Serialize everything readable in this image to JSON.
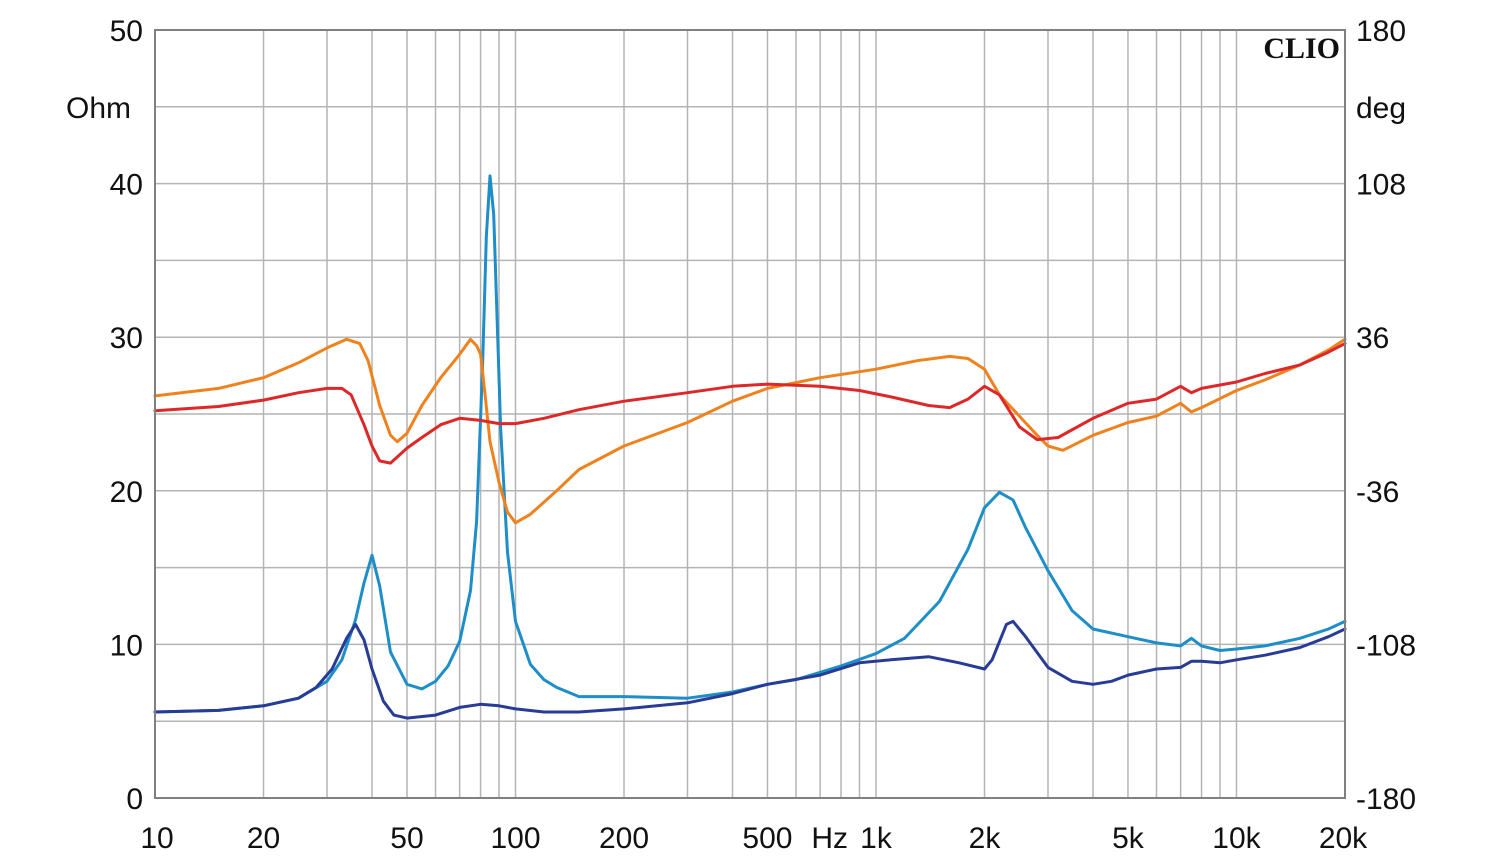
{
  "chart_data": {
    "type": "line",
    "x_scale": "log",
    "xlim": [
      10,
      20000
    ],
    "ylim_left": [
      0,
      50
    ],
    "ylim_right": [
      -180,
      180
    ],
    "grid": true,
    "left_unit": "Ohm",
    "right_unit": "deg",
    "watermark": "CLIO",
    "x_ticks": [
      {
        "v": 10,
        "label": "10"
      },
      {
        "v": 20,
        "label": "20"
      },
      {
        "v": 50,
        "label": "50"
      },
      {
        "v": 100,
        "label": "100"
      },
      {
        "v": 200,
        "label": "200"
      },
      {
        "v": 500,
        "label": "500"
      },
      {
        "v": 1000,
        "label": "1k"
      },
      {
        "v": 2000,
        "label": "2k"
      },
      {
        "v": 5000,
        "label": "5k"
      },
      {
        "v": 10000,
        "label": "10k"
      },
      {
        "v": 20000,
        "label": "20k"
      }
    ],
    "x_unit_label": "Hz",
    "y_ticks_left": [
      {
        "v": 0,
        "label": "0"
      },
      {
        "v": 10,
        "label": "10"
      },
      {
        "v": 20,
        "label": "20"
      },
      {
        "v": 30,
        "label": "30"
      },
      {
        "v": 40,
        "label": "40"
      },
      {
        "v": 50,
        "label": "50"
      }
    ],
    "y_ticks_right": [
      {
        "v": -180,
        "label": "-180"
      },
      {
        "v": -108,
        "label": "-108"
      },
      {
        "v": -36,
        "label": "-36"
      },
      {
        "v": 36,
        "label": "36"
      },
      {
        "v": 108,
        "label": "108"
      },
      {
        "v": 180,
        "label": "180"
      }
    ],
    "series": [
      {
        "id": "impedance-a",
        "axis": "left",
        "color": "#1e8ec8",
        "points": [
          [
            10,
            5.6
          ],
          [
            15,
            5.7
          ],
          [
            20,
            6
          ],
          [
            25,
            6.5
          ],
          [
            30,
            7.6
          ],
          [
            33,
            9
          ],
          [
            36,
            11.6
          ],
          [
            38,
            14
          ],
          [
            40,
            15.8
          ],
          [
            42,
            13.8
          ],
          [
            45,
            9.5
          ],
          [
            50,
            7.4
          ],
          [
            55,
            7.1
          ],
          [
            60,
            7.6
          ],
          [
            65,
            8.6
          ],
          [
            70,
            10.2
          ],
          [
            75,
            13.5
          ],
          [
            78,
            18
          ],
          [
            81,
            28
          ],
          [
            83,
            36.5
          ],
          [
            85,
            40.5
          ],
          [
            87,
            38
          ],
          [
            89,
            31
          ],
          [
            91,
            24
          ],
          [
            95,
            16
          ],
          [
            100,
            11.5
          ],
          [
            110,
            8.7
          ],
          [
            120,
            7.7
          ],
          [
            130,
            7.2
          ],
          [
            150,
            6.6
          ],
          [
            200,
            6.6
          ],
          [
            300,
            6.5
          ],
          [
            400,
            6.9
          ],
          [
            500,
            7.4
          ],
          [
            600,
            7.7
          ],
          [
            800,
            8.6
          ],
          [
            1000,
            9.4
          ],
          [
            1200,
            10.4
          ],
          [
            1500,
            12.8
          ],
          [
            1800,
            16.2
          ],
          [
            2000,
            18.9
          ],
          [
            2200,
            19.9
          ],
          [
            2400,
            19.4
          ],
          [
            2600,
            17.6
          ],
          [
            3000,
            14.8
          ],
          [
            3500,
            12.2
          ],
          [
            4000,
            11
          ],
          [
            5000,
            10.5
          ],
          [
            6000,
            10.1
          ],
          [
            7000,
            9.9
          ],
          [
            7500,
            10.4
          ],
          [
            8000,
            9.9
          ],
          [
            9000,
            9.6
          ],
          [
            10000,
            9.7
          ],
          [
            12000,
            9.9
          ],
          [
            15000,
            10.4
          ],
          [
            18000,
            11
          ],
          [
            20000,
            11.5
          ]
        ]
      },
      {
        "id": "impedance-b",
        "axis": "left",
        "color": "#283c96",
        "points": [
          [
            10,
            5.6
          ],
          [
            15,
            5.7
          ],
          [
            20,
            6
          ],
          [
            25,
            6.5
          ],
          [
            28,
            7.2
          ],
          [
            31,
            8.4
          ],
          [
            34,
            10.4
          ],
          [
            36,
            11.3
          ],
          [
            38,
            10.3
          ],
          [
            40,
            8.4
          ],
          [
            43,
            6.3
          ],
          [
            46,
            5.4
          ],
          [
            50,
            5.2
          ],
          [
            60,
            5.4
          ],
          [
            70,
            5.9
          ],
          [
            80,
            6.1
          ],
          [
            90,
            6
          ],
          [
            100,
            5.8
          ],
          [
            120,
            5.6
          ],
          [
            150,
            5.6
          ],
          [
            200,
            5.8
          ],
          [
            300,
            6.2
          ],
          [
            400,
            6.8
          ],
          [
            500,
            7.4
          ],
          [
            700,
            8
          ],
          [
            900,
            8.8
          ],
          [
            1100,
            9
          ],
          [
            1400,
            9.2
          ],
          [
            1700,
            8.8
          ],
          [
            2000,
            8.4
          ],
          [
            2100,
            9
          ],
          [
            2300,
            11.3
          ],
          [
            2400,
            11.5
          ],
          [
            2600,
            10.5
          ],
          [
            3000,
            8.5
          ],
          [
            3500,
            7.6
          ],
          [
            4000,
            7.4
          ],
          [
            4500,
            7.6
          ],
          [
            5000,
            8
          ],
          [
            6000,
            8.4
          ],
          [
            7000,
            8.5
          ],
          [
            7500,
            8.9
          ],
          [
            8000,
            8.9
          ],
          [
            9000,
            8.8
          ],
          [
            10000,
            9
          ],
          [
            12000,
            9.3
          ],
          [
            15000,
            9.8
          ],
          [
            18000,
            10.5
          ],
          [
            20000,
            11
          ]
        ]
      },
      {
        "id": "phase-a",
        "axis": "right",
        "color": "#f0821e",
        "points": [
          [
            10,
            8.5
          ],
          [
            15,
            12
          ],
          [
            20,
            17
          ],
          [
            25,
            24
          ],
          [
            30,
            31
          ],
          [
            34,
            35
          ],
          [
            37,
            33
          ],
          [
            39,
            25
          ],
          [
            42,
            4
          ],
          [
            45,
            -10
          ],
          [
            47,
            -13
          ],
          [
            50,
            -9
          ],
          [
            55,
            4
          ],
          [
            62,
            17
          ],
          [
            70,
            28
          ],
          [
            75,
            35
          ],
          [
            78,
            32
          ],
          [
            80,
            28
          ],
          [
            82,
            12
          ],
          [
            85,
            -13
          ],
          [
            90,
            -32
          ],
          [
            95,
            -46
          ],
          [
            100,
            -51
          ],
          [
            110,
            -47
          ],
          [
            130,
            -36
          ],
          [
            150,
            -26
          ],
          [
            200,
            -15
          ],
          [
            300,
            -4
          ],
          [
            400,
            6
          ],
          [
            500,
            12
          ],
          [
            700,
            17
          ],
          [
            1000,
            21
          ],
          [
            1300,
            25
          ],
          [
            1600,
            27
          ],
          [
            1800,
            26
          ],
          [
            2000,
            21
          ],
          [
            2200,
            9
          ],
          [
            2500,
            -1
          ],
          [
            2800,
            -10
          ],
          [
            3000,
            -15
          ],
          [
            3300,
            -17
          ],
          [
            4000,
            -10
          ],
          [
            5000,
            -4
          ],
          [
            6000,
            -1
          ],
          [
            7000,
            5
          ],
          [
            7500,
            1
          ],
          [
            8000,
            3
          ],
          [
            10000,
            11
          ],
          [
            12000,
            16
          ],
          [
            15000,
            23
          ],
          [
            18000,
            30
          ],
          [
            20000,
            35
          ]
        ]
      },
      {
        "id": "phase-b",
        "axis": "right",
        "color": "#dc2828",
        "points": [
          [
            10,
            1.5
          ],
          [
            15,
            3.5
          ],
          [
            20,
            6.5
          ],
          [
            25,
            10
          ],
          [
            30,
            12
          ],
          [
            33,
            12
          ],
          [
            35,
            9
          ],
          [
            38,
            -5
          ],
          [
            40,
            -15
          ],
          [
            42,
            -22
          ],
          [
            45,
            -23
          ],
          [
            50,
            -16
          ],
          [
            55,
            -11
          ],
          [
            62,
            -5
          ],
          [
            70,
            -2
          ],
          [
            80,
            -3
          ],
          [
            90,
            -4.5
          ],
          [
            100,
            -4.5
          ],
          [
            120,
            -2
          ],
          [
            150,
            2
          ],
          [
            200,
            6
          ],
          [
            300,
            10
          ],
          [
            400,
            13
          ],
          [
            500,
            14
          ],
          [
            700,
            13
          ],
          [
            900,
            11
          ],
          [
            1100,
            8
          ],
          [
            1400,
            4
          ],
          [
            1600,
            3
          ],
          [
            1800,
            7
          ],
          [
            2000,
            13
          ],
          [
            2200,
            9
          ],
          [
            2500,
            -6
          ],
          [
            2800,
            -12
          ],
          [
            3200,
            -11
          ],
          [
            4000,
            -2
          ],
          [
            5000,
            5
          ],
          [
            6000,
            7
          ],
          [
            7000,
            13
          ],
          [
            7500,
            10
          ],
          [
            8000,
            12
          ],
          [
            10000,
            15
          ],
          [
            12000,
            19
          ],
          [
            15000,
            23
          ],
          [
            18000,
            29
          ],
          [
            20000,
            33
          ]
        ]
      }
    ]
  }
}
